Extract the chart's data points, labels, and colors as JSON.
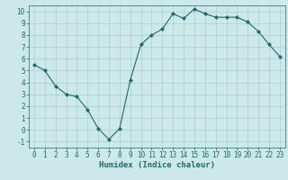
{
  "x": [
    0,
    1,
    2,
    3,
    4,
    5,
    6,
    7,
    8,
    9,
    10,
    11,
    12,
    13,
    14,
    15,
    16,
    17,
    18,
    19,
    20,
    21,
    22,
    23
  ],
  "y": [
    5.5,
    5.0,
    3.7,
    3.0,
    2.8,
    1.7,
    0.1,
    -0.8,
    0.1,
    4.2,
    7.2,
    8.0,
    8.5,
    9.8,
    9.4,
    10.2,
    9.8,
    9.5,
    9.5,
    9.5,
    9.1,
    8.3,
    7.2,
    6.2
  ],
  "line_color": "#1a6b6b",
  "marker": "D",
  "marker_size": 2,
  "bg_color": "#cde8e8",
  "grid_color": "#aacfcf",
  "xlabel": "Humidex (Indice chaleur)",
  "xlim": [
    -0.5,
    23.5
  ],
  "ylim": [
    -1.5,
    10.5
  ],
  "xticks": [
    0,
    1,
    2,
    3,
    4,
    5,
    6,
    7,
    8,
    9,
    10,
    11,
    12,
    13,
    14,
    15,
    16,
    17,
    18,
    19,
    20,
    21,
    22,
    23
  ],
  "yticks": [
    -1,
    0,
    1,
    2,
    3,
    4,
    5,
    6,
    7,
    8,
    9,
    10
  ],
  "tick_fontsize": 5.5,
  "xlabel_fontsize": 6.5,
  "linewidth": 0.8
}
